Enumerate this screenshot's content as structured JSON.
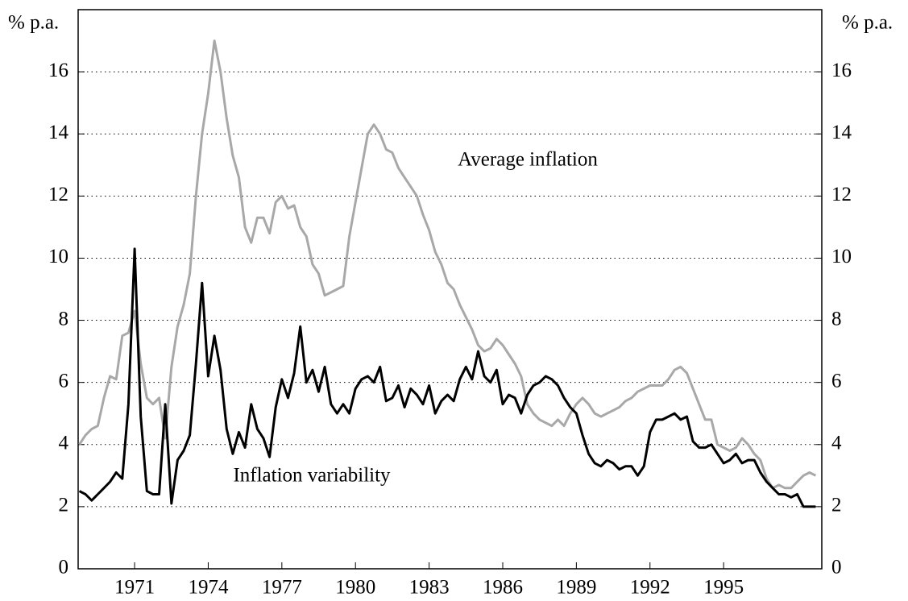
{
  "chart_data": {
    "type": "line",
    "y_label": "% p.a.",
    "y2_label": "% p.a.",
    "xlim": [
      1968.7,
      1999.0
    ],
    "xticks": [
      1971,
      1974,
      1977,
      1980,
      1983,
      1986,
      1989,
      1992,
      1995
    ],
    "ylim": [
      0,
      18
    ],
    "yticks": [
      0,
      2,
      4,
      6,
      8,
      10,
      12,
      14,
      16
    ],
    "y2lim": [
      0,
      18
    ],
    "y2ticks": [
      0,
      2,
      4,
      6,
      8,
      10,
      12,
      14,
      16
    ],
    "grid": true,
    "x": [
      1968.75,
      1969,
      1969.25,
      1969.5,
      1969.75,
      1970,
      1970.25,
      1970.5,
      1970.75,
      1971,
      1971.25,
      1971.5,
      1971.75,
      1972,
      1972.25,
      1972.5,
      1972.75,
      1973,
      1973.25,
      1973.5,
      1973.75,
      1974,
      1974.25,
      1974.5,
      1974.75,
      1975,
      1975.25,
      1975.5,
      1975.75,
      1976,
      1976.25,
      1976.5,
      1976.75,
      1977,
      1977.25,
      1977.5,
      1977.75,
      1978,
      1978.25,
      1978.5,
      1978.75,
      1979,
      1979.25,
      1979.5,
      1979.75,
      1980,
      1980.25,
      1980.5,
      1980.75,
      1981,
      1981.25,
      1981.5,
      1981.75,
      1982,
      1982.25,
      1982.5,
      1982.75,
      1983,
      1983.25,
      1983.5,
      1983.75,
      1984,
      1984.25,
      1984.5,
      1984.75,
      1985,
      1985.25,
      1985.5,
      1985.75,
      1986,
      1986.25,
      1986.5,
      1986.75,
      1987,
      1987.25,
      1987.5,
      1987.75,
      1988,
      1988.25,
      1988.5,
      1988.75,
      1989,
      1989.25,
      1989.5,
      1989.75,
      1990,
      1990.25,
      1990.5,
      1990.75,
      1991,
      1991.25,
      1991.5,
      1991.75,
      1992,
      1992.25,
      1992.5,
      1992.75,
      1993,
      1993.25,
      1993.5,
      1993.75,
      1994,
      1994.25,
      1994.5,
      1994.75,
      1995,
      1995.25,
      1995.5,
      1995.75,
      1996,
      1996.25,
      1996.5,
      1996.75,
      1997,
      1997.25,
      1997.5,
      1997.75,
      1998,
      1998.25,
      1998.5,
      1998.75
    ],
    "series": [
      {
        "name": "Average inflation",
        "color": "#a8a8a8",
        "values": [
          4.0,
          4.3,
          4.5,
          4.6,
          5.5,
          6.2,
          6.1,
          7.5,
          7.6,
          8.3,
          6.6,
          5.5,
          5.3,
          5.5,
          4.2,
          6.5,
          7.8,
          8.5,
          9.5,
          12.0,
          14.0,
          15.3,
          17.0,
          16.0,
          14.5,
          13.3,
          12.6,
          11.0,
          10.5,
          11.3,
          11.3,
          10.8,
          11.8,
          12.0,
          11.6,
          11.7,
          11.0,
          10.7,
          9.8,
          9.5,
          8.8,
          8.9,
          9.0,
          9.1,
          10.7,
          11.8,
          12.9,
          14.0,
          14.3,
          14.0,
          13.5,
          13.4,
          12.9,
          12.6,
          12.3,
          12.0,
          11.4,
          10.9,
          10.2,
          9.8,
          9.2,
          9.0,
          8.5,
          8.1,
          7.7,
          7.2,
          7.0,
          7.1,
          7.4,
          7.2,
          6.9,
          6.6,
          6.2,
          5.3,
          5.0,
          4.8,
          4.7,
          4.6,
          4.8,
          4.6,
          5.0,
          5.3,
          5.5,
          5.3,
          5.0,
          4.9,
          5.0,
          5.1,
          5.2,
          5.4,
          5.5,
          5.7,
          5.8,
          5.9,
          5.9,
          5.9,
          6.1,
          6.4,
          6.5,
          6.3,
          5.8,
          5.3,
          4.8,
          4.8,
          4.0,
          3.9,
          3.8,
          3.9,
          4.2,
          4.0,
          3.7,
          3.5,
          2.9,
          2.6,
          2.7,
          2.6,
          2.6,
          2.8,
          3.0,
          3.1,
          3.0
        ]
      },
      {
        "name": "Inflation variability",
        "color": "#000000",
        "values": [
          2.5,
          2.4,
          2.2,
          2.4,
          2.6,
          2.8,
          3.1,
          2.9,
          5.3,
          10.3,
          4.9,
          2.5,
          2.4,
          2.4,
          5.3,
          2.1,
          3.5,
          3.8,
          4.3,
          6.6,
          9.2,
          6.2,
          7.5,
          6.4,
          4.5,
          3.7,
          4.4,
          3.9,
          5.3,
          4.5,
          4.2,
          3.6,
          5.2,
          6.1,
          5.5,
          6.3,
          7.8,
          6.0,
          6.4,
          5.7,
          6.5,
          5.3,
          5.0,
          5.3,
          5.0,
          5.8,
          6.1,
          6.2,
          6.0,
          6.5,
          5.4,
          5.5,
          5.9,
          5.2,
          5.8,
          5.6,
          5.3,
          5.9,
          5.0,
          5.4,
          5.6,
          5.4,
          6.1,
          6.5,
          6.1,
          7.0,
          6.2,
          6.0,
          6.4,
          5.3,
          5.6,
          5.5,
          5.0,
          5.6,
          5.9,
          6.0,
          6.2,
          6.1,
          5.9,
          5.5,
          5.2,
          5.0,
          4.3,
          3.7,
          3.4,
          3.3,
          3.5,
          3.4,
          3.2,
          3.3,
          3.3,
          3.0,
          3.3,
          4.4,
          4.8,
          4.8,
          4.9,
          5.0,
          4.8,
          4.9,
          4.1,
          3.9,
          3.9,
          4.0,
          3.7,
          3.4,
          3.5,
          3.7,
          3.4,
          3.5,
          3.5,
          3.1,
          2.8,
          2.6,
          2.4,
          2.4,
          2.3,
          2.4,
          2.0,
          2.0,
          2.0
        ]
      }
    ]
  }
}
